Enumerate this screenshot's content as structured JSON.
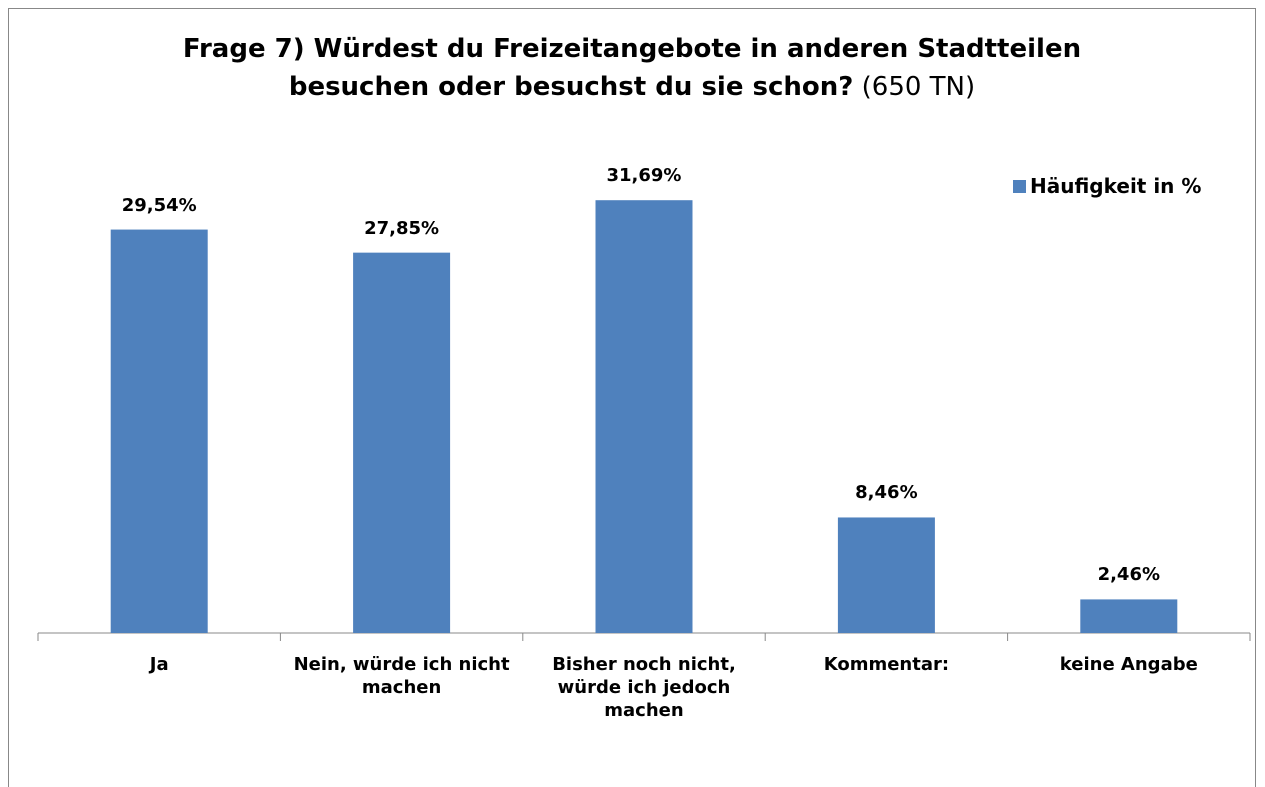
{
  "chart_data": {
    "type": "bar",
    "title": "Frage 7) Würdest du Freizeitangebote in anderen Stadtteilen besuchen oder besuchst du sie schon?",
    "title_note": "(650 TN)",
    "categories": [
      "Ja",
      "Nein, würde ich nicht machen",
      "Bisher noch nicht, würde ich jedoch machen",
      "Kommentar:",
      "keine Angabe"
    ],
    "series": [
      {
        "name": "Häufigkeit in %",
        "color": "#4f81bd",
        "values": [
          29.54,
          27.85,
          31.69,
          8.46,
          2.46
        ],
        "value_labels": [
          "29,54%",
          "27,85%",
          "31,69%",
          "8,46%",
          "2,46%"
        ]
      }
    ],
    "ylim": [
      0,
      35
    ],
    "legend": "top-right"
  }
}
